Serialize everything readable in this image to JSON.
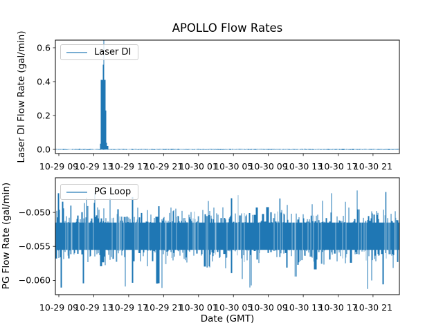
{
  "figure_title": "APOLLO Flow Rates",
  "colors": {
    "line": "#1f77b4",
    "axis": "#000000",
    "legend_border": "#cccccc",
    "background": "#ffffff"
  },
  "chart_data": [
    {
      "type": "line",
      "title": "APOLLO Flow Rates",
      "ylabel": "Laser DI Flow Rate (gal/min)",
      "legend": {
        "label": "Laser DI",
        "position": "upper left"
      },
      "x_axis": {
        "tick_labels": [
          "10-29 09",
          "10-29 13",
          "10-29 17",
          "10-29 21",
          "10-30 01",
          "10-30 05",
          "10-30 09",
          "10-30 13",
          "10-30 17",
          "10-30 21"
        ],
        "tick_hours": [
          9,
          13,
          17,
          21,
          25,
          29,
          33,
          37,
          41,
          45
        ],
        "lim_hours": [
          8.6,
          48.02
        ],
        "grid": false
      },
      "y_axis": {
        "tick_labels": [
          "0.0",
          "0.2",
          "0.4",
          "0.6"
        ],
        "tick_values": [
          0.0,
          0.2,
          0.4,
          0.6
        ],
        "lim": [
          -0.0245,
          0.6449
        ]
      },
      "series": [
        {
          "name": "Laser DI",
          "color": "#1f77b4",
          "baseline": 0.0,
          "noise_halfwidth": 0.0022,
          "spike_profile": [
            [
              13.7,
              0.02
            ],
            [
              13.78,
              0.04
            ],
            [
              13.82,
              0.41
            ],
            [
              14.02,
              0.41
            ],
            [
              14.05,
              0.5
            ],
            [
              14.1,
              0.5
            ],
            [
              14.12,
              0.644
            ],
            [
              14.16,
              0.644
            ],
            [
              14.19,
              0.5
            ],
            [
              14.23,
              0.41
            ],
            [
              14.36,
              0.41
            ],
            [
              14.42,
              0.05
            ],
            [
              14.55,
              0.02
            ]
          ]
        }
      ],
      "seed": 20
    },
    {
      "type": "line",
      "ylabel": "PG Flow Rate (gal/min)",
      "xlabel": "Date (GMT)",
      "legend": {
        "label": "PG Loop",
        "position": "upper left"
      },
      "x_axis": {
        "tick_labels": [
          "10-29 09",
          "10-29 13",
          "10-29 17",
          "10-29 21",
          "10-30 01",
          "10-30 05",
          "10-30 09",
          "10-30 13",
          "10-30 17",
          "10-30 21"
        ],
        "tick_hours": [
          9,
          13,
          17,
          21,
          25,
          29,
          33,
          37,
          41,
          45
        ],
        "lim_hours": [
          8.6,
          48.02
        ],
        "grid": false
      },
      "y_axis": {
        "tick_labels": [
          "−0.050",
          "−0.055",
          "−0.060"
        ],
        "tick_values": [
          -0.05,
          -0.055,
          -0.06
        ],
        "lim": [
          -0.0621,
          -0.0449
        ]
      },
      "series": [
        {
          "name": "PG Loop",
          "color": "#1f77b4",
          "mean": -0.0535,
          "core_band": [
            -0.0555,
            -0.0515
          ],
          "typical_range": [
            -0.0585,
            -0.0485
          ],
          "extreme_range": [
            -0.0613,
            -0.0466
          ]
        }
      ],
      "seed": 5
    }
  ]
}
